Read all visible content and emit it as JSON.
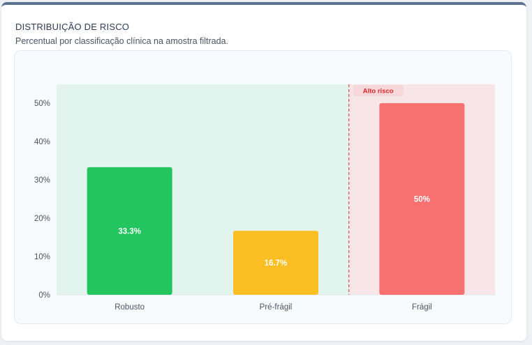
{
  "card": {
    "title": "DISTRIBUIÇÃO DE RISCO",
    "subtitle": "Percentual por classificação clínica na amostra filtrada."
  },
  "chart_data": {
    "type": "bar",
    "categories": [
      "Robusto",
      "Pré-frágil",
      "Frágil"
    ],
    "values": [
      33.3,
      16.7,
      50
    ],
    "value_labels": [
      "33.3%",
      "16.7%",
      "50%"
    ],
    "bar_colors": [
      "#22c55e",
      "#fbbf24",
      "#f87171"
    ],
    "ylim": [
      0,
      55
    ],
    "yticks": [
      0,
      10,
      20,
      30,
      40,
      50
    ],
    "ytick_labels": [
      "0%",
      "10%",
      "20%",
      "30%",
      "40%",
      "50%"
    ],
    "grid": false,
    "regions": [
      {
        "categories": [
          "Robusto",
          "Pré-frágil"
        ],
        "color": "#e1f4ee"
      },
      {
        "categories": [
          "Frágil"
        ],
        "color": "#f8e5e7",
        "label": "Alto risco",
        "label_color": "#dc2626",
        "badge_color": "#f6d7da",
        "divider_color": "#dc5a5a"
      }
    ]
  }
}
